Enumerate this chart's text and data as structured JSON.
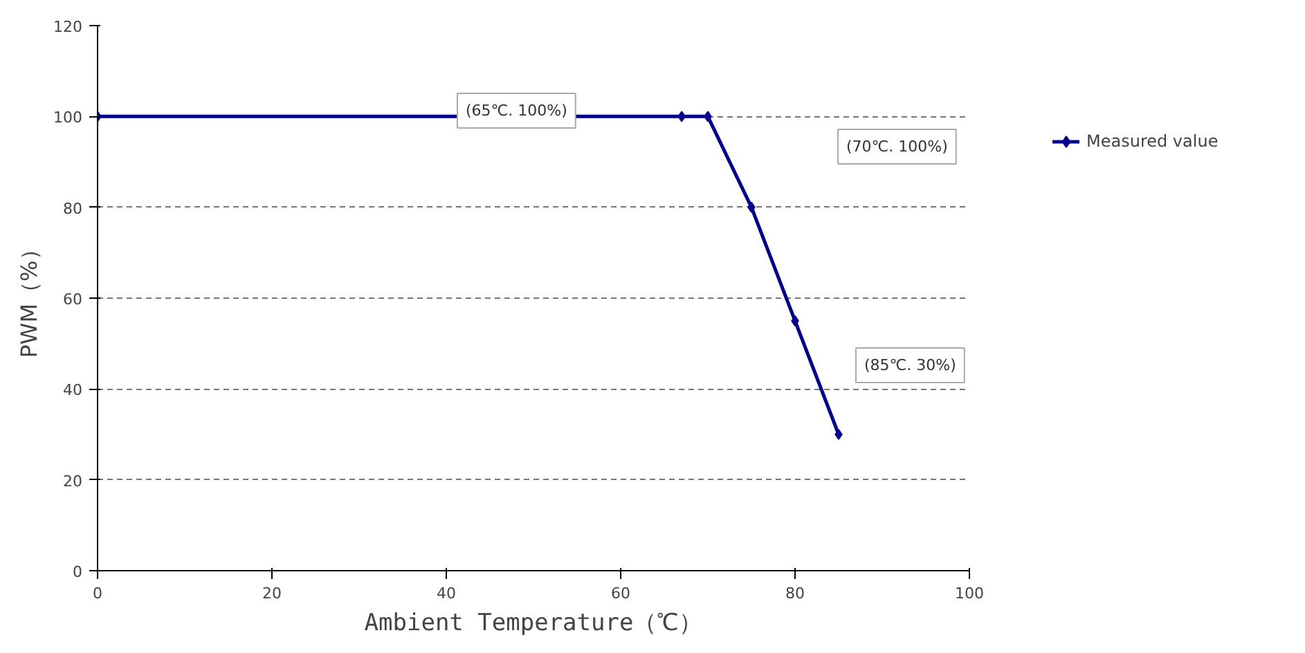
{
  "chart_data": {
    "type": "line",
    "xlabel": "Ambient Temperature（℃）",
    "ylabel": "PWM（%）",
    "x": [
      0,
      67,
      70,
      75,
      80,
      85
    ],
    "series": [
      {
        "name": "Measured value",
        "color": "#00008b",
        "values": [
          100,
          100,
          100,
          80,
          55,
          30
        ]
      }
    ],
    "xlim": [
      0,
      100
    ],
    "xticks": [
      0,
      20,
      40,
      60,
      80,
      100
    ],
    "ylim": [
      0,
      120
    ],
    "yticks": [
      0,
      20,
      40,
      60,
      80,
      100,
      120
    ],
    "grid": "y",
    "legend": "right",
    "marker": "diamond",
    "line_style": "solid",
    "annotations": [
      "(65℃. 100%)",
      "(70℃. 100%)",
      "(85℃. 30%)"
    ]
  }
}
